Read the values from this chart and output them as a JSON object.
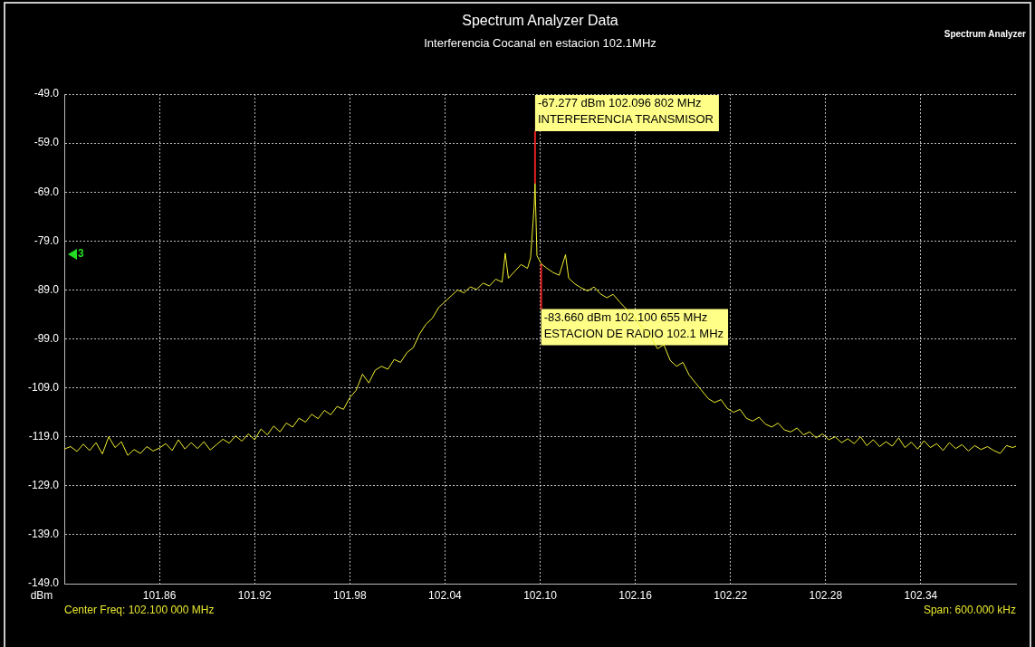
{
  "chart_data": {
    "type": "line",
    "title": "Spectrum Analyzer Data",
    "subtitle": "Interferencia Cocanal en estacion 102.1MHz",
    "ylabel": "dBm",
    "annotations": [
      "Spectrum Analyzer",
      "Center Freq: 102.100 000 MHz",
      "Span: 600.000 kHz",
      "3",
      {
        "text": "-67.277 dBm 102.096 802 MHz\nINTERFERENCIA TRANSMISOR",
        "x": 102.096802,
        "y": -67.277
      },
      {
        "text": "-83.660 dBm 102.100 655 MHz\nESTACION DE RADIO 102.1 MHz",
        "x": 102.100655,
        "y": -83.66
      }
    ],
    "x": [
      101.8,
      101.804,
      101.808,
      101.812,
      101.816,
      101.82,
      101.824,
      101.828,
      101.832,
      101.836,
      101.84,
      101.844,
      101.848,
      101.852,
      101.856,
      101.86,
      101.864,
      101.868,
      101.872,
      101.876,
      101.88,
      101.884,
      101.888,
      101.892,
      101.896,
      101.9,
      101.904,
      101.908,
      101.912,
      101.916,
      101.92,
      101.924,
      101.928,
      101.932,
      101.936,
      101.94,
      101.944,
      101.948,
      101.952,
      101.956,
      101.96,
      101.964,
      101.968,
      101.972,
      101.976,
      101.98,
      101.984,
      101.988,
      101.992,
      101.996,
      102.0,
      102.004,
      102.008,
      102.012,
      102.016,
      102.02,
      102.024,
      102.028,
      102.032,
      102.036,
      102.04,
      102.044,
      102.048,
      102.052,
      102.056,
      102.06,
      102.064,
      102.068,
      102.072,
      102.076,
      102.078,
      102.08,
      102.084,
      102.088,
      102.092,
      102.094,
      102.0962,
      102.096802,
      102.098,
      102.100655,
      102.104,
      102.108,
      102.112,
      102.116,
      102.118,
      102.122,
      102.126,
      102.13,
      102.134,
      102.138,
      102.142,
      102.146,
      102.15,
      102.154,
      102.158,
      102.162,
      102.166,
      102.17,
      102.174,
      102.178,
      102.182,
      102.186,
      102.19,
      102.194,
      102.198,
      102.202,
      102.206,
      102.21,
      102.214,
      102.218,
      102.222,
      102.226,
      102.23,
      102.234,
      102.238,
      102.242,
      102.246,
      102.25,
      102.254,
      102.258,
      102.262,
      102.266,
      102.27,
      102.274,
      102.278,
      102.282,
      102.286,
      102.29,
      102.294,
      102.298,
      102.302,
      102.306,
      102.31,
      102.314,
      102.318,
      102.322,
      102.326,
      102.33,
      102.334,
      102.338,
      102.342,
      102.346,
      102.35,
      102.354,
      102.358,
      102.362,
      102.366,
      102.37,
      102.374,
      102.378,
      102.382,
      102.386,
      102.39,
      102.394,
      102.398,
      102.4
    ],
    "series": [
      {
        "color": "#f2f230",
        "values": [
          -121.5,
          -121.0,
          -122.0,
          -120.5,
          -121.8,
          -120.2,
          -122.5,
          -119.0,
          -121.2,
          -120.0,
          -122.8,
          -121.6,
          -122.4,
          -121.0,
          -121.9,
          -121.3,
          -120.4,
          -121.8,
          -119.6,
          -121.5,
          -120.2,
          -121.4,
          -120.0,
          -121.7,
          -120.6,
          -119.5,
          -120.3,
          -118.8,
          -119.9,
          -118.4,
          -119.6,
          -117.4,
          -118.6,
          -116.8,
          -118.0,
          -116.2,
          -117.0,
          -115.2,
          -116.0,
          -114.4,
          -115.3,
          -113.6,
          -114.5,
          -112.8,
          -113.4,
          -111.0,
          -109.5,
          -106.2,
          -108.0,
          -105.4,
          -104.6,
          -105.2,
          -103.2,
          -103.8,
          -101.8,
          -100.8,
          -98.0,
          -96.0,
          -94.8,
          -92.6,
          -91.4,
          -90.2,
          -89.0,
          -89.6,
          -88.4,
          -88.9,
          -87.6,
          -88.2,
          -86.8,
          -87.4,
          -81.5,
          -86.6,
          -85.2,
          -83.8,
          -84.6,
          -82.4,
          -72.0,
          -67.277,
          -82.0,
          -83.66,
          -84.5,
          -85.4,
          -86.0,
          -81.8,
          -86.6,
          -87.8,
          -88.6,
          -89.2,
          -88.4,
          -89.8,
          -90.6,
          -89.9,
          -91.4,
          -92.8,
          -94.0,
          -95.8,
          -97.4,
          -98.8,
          -101.0,
          -100.2,
          -103.4,
          -104.6,
          -103.8,
          -106.4,
          -108.0,
          -109.6,
          -111.2,
          -112.0,
          -111.4,
          -113.2,
          -114.0,
          -113.4,
          -115.2,
          -115.8,
          -115.0,
          -116.4,
          -117.0,
          -116.2,
          -117.6,
          -118.0,
          -117.2,
          -118.6,
          -118.0,
          -119.2,
          -118.4,
          -119.6,
          -119.0,
          -120.2,
          -119.4,
          -120.4,
          -119.0,
          -120.8,
          -119.6,
          -121.0,
          -120.0,
          -120.9,
          -119.2,
          -121.2,
          -120.1,
          -121.5,
          -119.8,
          -121.2,
          -120.4,
          -121.8,
          -120.2,
          -121.4,
          -120.6,
          -121.9,
          -120.8,
          -121.6,
          -121.0,
          -121.8,
          -122.4,
          -120.8,
          -121.2,
          -120.9
        ]
      }
    ],
    "xlim": [
      101.8,
      102.4
    ],
    "xticks": [
      101.86,
      101.92,
      101.98,
      102.04,
      {
        "value": 102.1,
        "label": "102.10"
      },
      102.16,
      102.22,
      102.28,
      102.34
    ],
    "ylim": [
      -149,
      -49
    ],
    "yticks": [
      {
        "value": -149,
        "label": "-149.0"
      },
      {
        "value": -139,
        "label": "-139.0"
      },
      {
        "value": -129,
        "label": "-129.0"
      },
      {
        "value": -119,
        "label": "-119.0"
      },
      {
        "value": -109,
        "label": "-109.0"
      },
      {
        "value": -99,
        "label": "-99.0"
      },
      {
        "value": -89,
        "label": "-89.0"
      },
      {
        "value": -79,
        "label": "-79.0"
      },
      {
        "value": -69,
        "label": "-69.0"
      },
      {
        "value": -59,
        "label": "-59.0"
      },
      {
        "value": -49,
        "label": "-49.0"
      }
    ],
    "grid": true,
    "marker": "none",
    "line_style": "solid"
  }
}
